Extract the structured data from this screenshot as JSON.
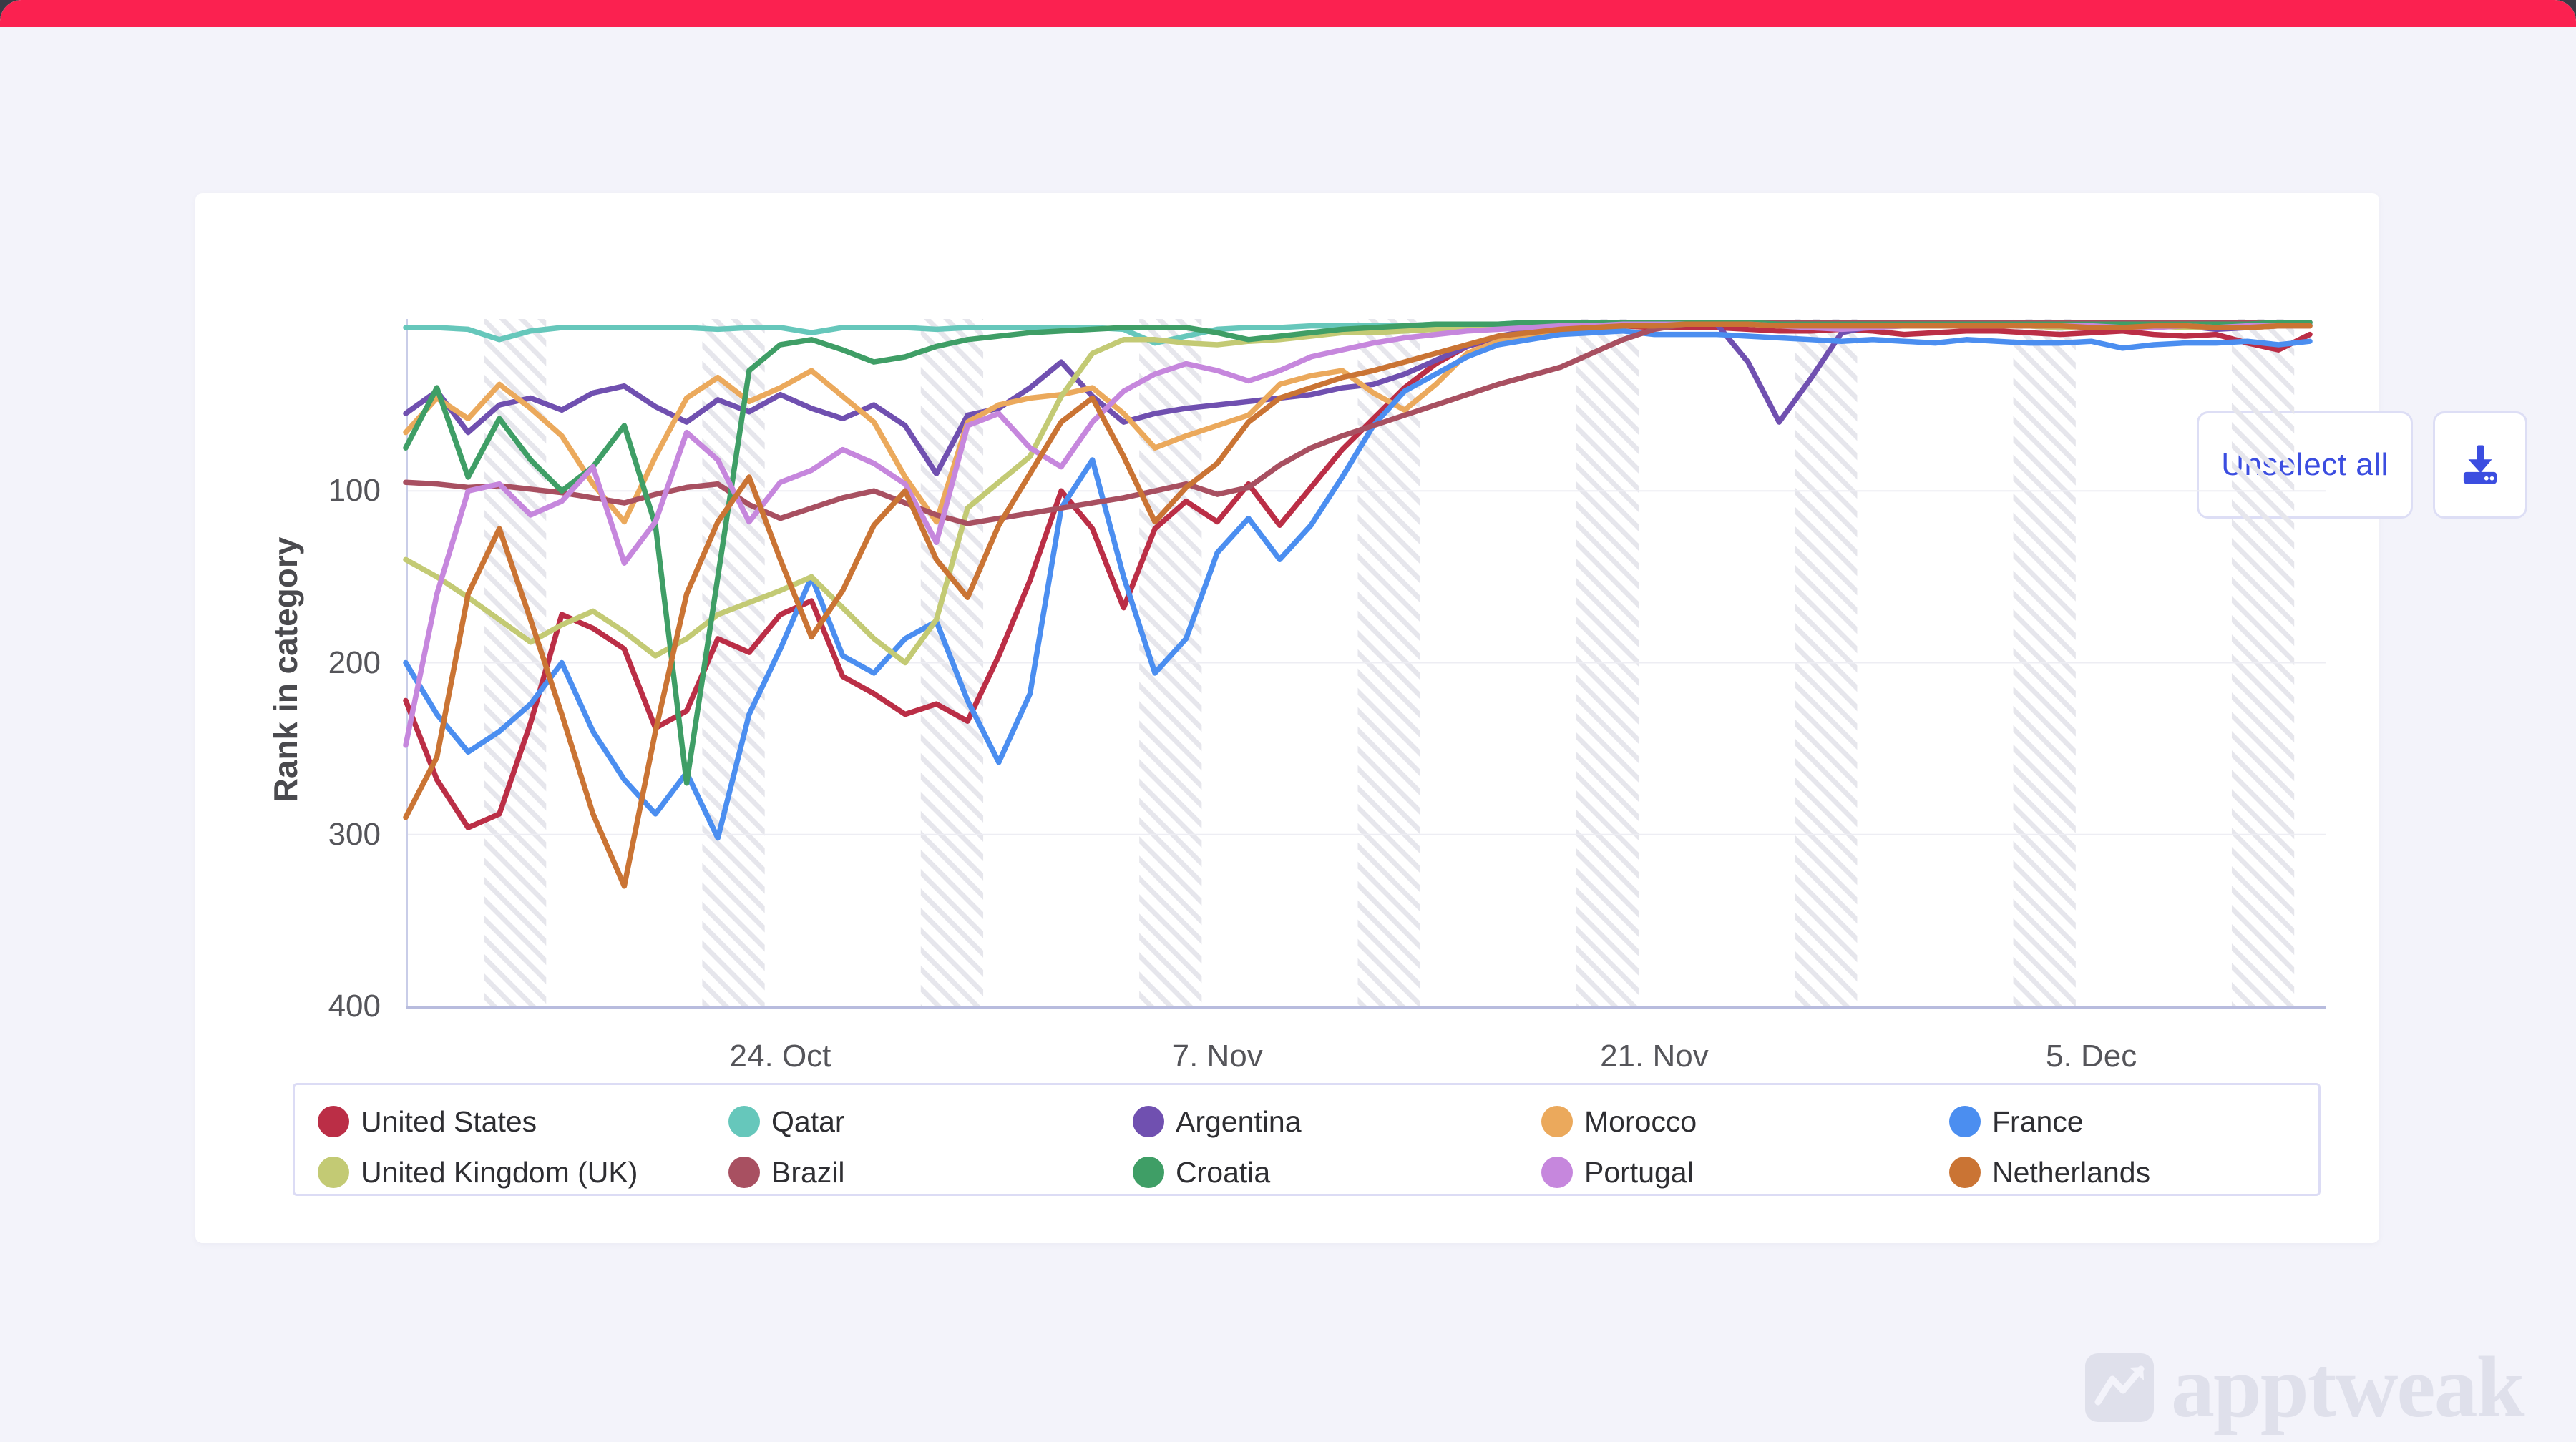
{
  "page": {
    "top_bar_color": "#fb2150",
    "background_color": "#f3f3fa",
    "corner_color": "#3b3b46",
    "card_color": "#ffffff"
  },
  "toolbar": {
    "unselect_all_label": "Unselect all",
    "download_icon": "download-icon",
    "accent_color": "#3b4de0"
  },
  "watermark": {
    "text": "apptweak",
    "logo_icon": "apptweak-logo",
    "color": "#dfe0eb"
  },
  "chart_data": {
    "type": "line",
    "title": "",
    "ylabel": "Rank in category",
    "xlabel": "",
    "y_axis": {
      "inverted": true,
      "min": 0,
      "max": 400,
      "ticks": [
        "100",
        "200",
        "300",
        "400"
      ],
      "tick_values": [
        100,
        200,
        300,
        400
      ]
    },
    "x_axis": {
      "start_date": "2022-10-12",
      "end_date": "2022-12-12",
      "points": 62,
      "tick_labels": [
        "24. Oct",
        "7. Nov",
        "21. Nov",
        "5. Dec"
      ],
      "tick_indices": [
        12,
        26,
        40,
        54
      ]
    },
    "weekend_band_saturday_indices": [
      3,
      10,
      17,
      24,
      31,
      38,
      45,
      52,
      59
    ],
    "grid": true,
    "legend_position": "bottom",
    "series": [
      {
        "name": "United States",
        "color": "#bb2e46",
        "values": [
          222,
          268,
          296,
          288,
          235,
          172,
          180,
          192,
          238,
          228,
          186,
          194,
          172,
          164,
          208,
          218,
          230,
          224,
          234,
          196,
          152,
          100,
          122,
          168,
          122,
          106,
          118,
          96,
          120,
          98,
          76,
          58,
          40,
          26,
          16,
          11,
          9,
          7,
          5,
          4,
          5,
          5,
          5,
          6,
          7,
          7,
          6,
          7,
          9,
          8,
          7,
          7,
          8,
          9,
          8,
          7,
          9,
          10,
          9,
          14,
          18,
          9
        ]
      },
      {
        "name": "Qatar",
        "color": "#66c7bb",
        "values": [
          5,
          5,
          6,
          12,
          7,
          5,
          5,
          5,
          5,
          5,
          6,
          5,
          5,
          8,
          5,
          5,
          5,
          6,
          5,
          5,
          5,
          5,
          5,
          6,
          14,
          10,
          6,
          5,
          5,
          4,
          4,
          4,
          4,
          3,
          3,
          3,
          2,
          2,
          2,
          2,
          2,
          2,
          2,
          2,
          2,
          2,
          2,
          2,
          2,
          2,
          2,
          2,
          2,
          2,
          2,
          2,
          2,
          2,
          2,
          2,
          3,
          3
        ]
      },
      {
        "name": "Argentina",
        "color": "#7050b0",
        "values": [
          55,
          42,
          66,
          50,
          46,
          53,
          43,
          39,
          51,
          60,
          47,
          54,
          44,
          52,
          58,
          50,
          62,
          90,
          56,
          52,
          40,
          25,
          45,
          60,
          55,
          52,
          50,
          48,
          46,
          44,
          40,
          38,
          32,
          24,
          16,
          10,
          7,
          5,
          4,
          3,
          3,
          3,
          3,
          25,
          60,
          35,
          8,
          4,
          3,
          3,
          3,
          3,
          4,
          4,
          5,
          4,
          4,
          4,
          6,
          5,
          4,
          4
        ]
      },
      {
        "name": "Morocco",
        "color": "#eba95c",
        "values": [
          66,
          46,
          58,
          38,
          52,
          68,
          96,
          118,
          80,
          46,
          34,
          48,
          40,
          30,
          45,
          60,
          92,
          118,
          60,
          50,
          46,
          44,
          40,
          55,
          75,
          68,
          62,
          56,
          38,
          33,
          30,
          43,
          53,
          38,
          20,
          13,
          9,
          6,
          5,
          4,
          3,
          3,
          3,
          3,
          4,
          4,
          4,
          4,
          4,
          4,
          4,
          4,
          4,
          5,
          4,
          4,
          4,
          4,
          5,
          5,
          4,
          4
        ]
      },
      {
        "name": "France",
        "color": "#4b8ef0",
        "values": [
          200,
          230,
          252,
          240,
          224,
          200,
          240,
          268,
          288,
          264,
          302,
          230,
          192,
          150,
          196,
          206,
          186,
          176,
          222,
          258,
          218,
          110,
          82,
          150,
          206,
          186,
          136,
          116,
          140,
          120,
          92,
          62,
          42,
          32,
          22,
          15,
          12,
          9,
          8,
          7,
          9,
          9,
          9,
          10,
          11,
          12,
          13,
          12,
          13,
          14,
          12,
          13,
          14,
          14,
          13,
          17,
          15,
          14,
          14,
          13,
          15,
          13
        ]
      },
      {
        "name": "United Kingdom (UK)",
        "color": "#c3ca74",
        "values": [
          140,
          150,
          162,
          175,
          188,
          178,
          170,
          182,
          196,
          186,
          172,
          165,
          158,
          150,
          168,
          186,
          200,
          175,
          110,
          95,
          80,
          45,
          20,
          12,
          12,
          14,
          15,
          13,
          12,
          10,
          8,
          8,
          7,
          6,
          5,
          4,
          4,
          3,
          3,
          3,
          3,
          3,
          3,
          3,
          4,
          4,
          4,
          4,
          4,
          4,
          4,
          4,
          4,
          5,
          4,
          4,
          4,
          5,
          5,
          4,
          4,
          4
        ]
      },
      {
        "name": "Brazil",
        "color": "#a85061",
        "values": [
          95,
          96,
          98,
          97,
          99,
          101,
          104,
          107,
          102,
          98,
          96,
          108,
          116,
          110,
          104,
          100,
          107,
          114,
          119,
          116,
          113,
          110,
          107,
          104,
          100,
          96,
          102,
          98,
          85,
          75,
          68,
          62,
          56,
          50,
          44,
          38,
          33,
          28,
          20,
          12,
          6,
          3,
          2,
          2,
          2,
          2,
          2,
          2,
          2,
          2,
          2,
          2,
          2,
          2,
          2,
          2,
          2,
          2,
          2,
          2,
          2,
          2
        ]
      },
      {
        "name": "Croatia",
        "color": "#3f9e66",
        "values": [
          75,
          40,
          92,
          58,
          82,
          100,
          86,
          62,
          120,
          270,
          150,
          30,
          15,
          12,
          18,
          25,
          22,
          16,
          12,
          10,
          8,
          7,
          6,
          5,
          5,
          5,
          8,
          12,
          10,
          8,
          6,
          5,
          4,
          3,
          3,
          3,
          2,
          2,
          2,
          2,
          2,
          2,
          2,
          2,
          3,
          3,
          3,
          3,
          3,
          3,
          3,
          3,
          3,
          3,
          3,
          3,
          3,
          3,
          3,
          3,
          2,
          2
        ]
      },
      {
        "name": "Portugal",
        "color": "#c687dd",
        "values": [
          248,
          160,
          100,
          96,
          114,
          106,
          86,
          142,
          118,
          66,
          82,
          118,
          95,
          88,
          76,
          84,
          96,
          130,
          62,
          55,
          75,
          86,
          60,
          42,
          32,
          26,
          30,
          36,
          30,
          22,
          18,
          14,
          11,
          9,
          7,
          6,
          5,
          4,
          4,
          3,
          3,
          3,
          3,
          3,
          4,
          5,
          6,
          5,
          4,
          4,
          4,
          4,
          4,
          4,
          4,
          5,
          5,
          4,
          5,
          4,
          4,
          4
        ]
      },
      {
        "name": "Netherlands",
        "color": "#ca7434",
        "values": [
          290,
          255,
          160,
          122,
          175,
          230,
          288,
          330,
          240,
          160,
          118,
          92,
          140,
          185,
          158,
          120,
          100,
          140,
          162,
          120,
          90,
          60,
          46,
          80,
          118,
          98,
          84,
          60,
          46,
          40,
          34,
          30,
          25,
          20,
          15,
          10,
          8,
          6,
          5,
          4,
          4,
          3,
          3,
          3,
          4,
          4,
          4,
          4,
          4,
          4,
          4,
          4,
          4,
          4,
          5,
          5,
          4,
          4,
          5,
          5,
          4,
          4
        ]
      }
    ],
    "style": {
      "line_width": 7.5,
      "grid_color": "#ededf3",
      "axis_color": "#c9cde8",
      "bottom_axis_color": "#b8bcde",
      "weekend_hatch_color": "#e6e6ec"
    }
  }
}
